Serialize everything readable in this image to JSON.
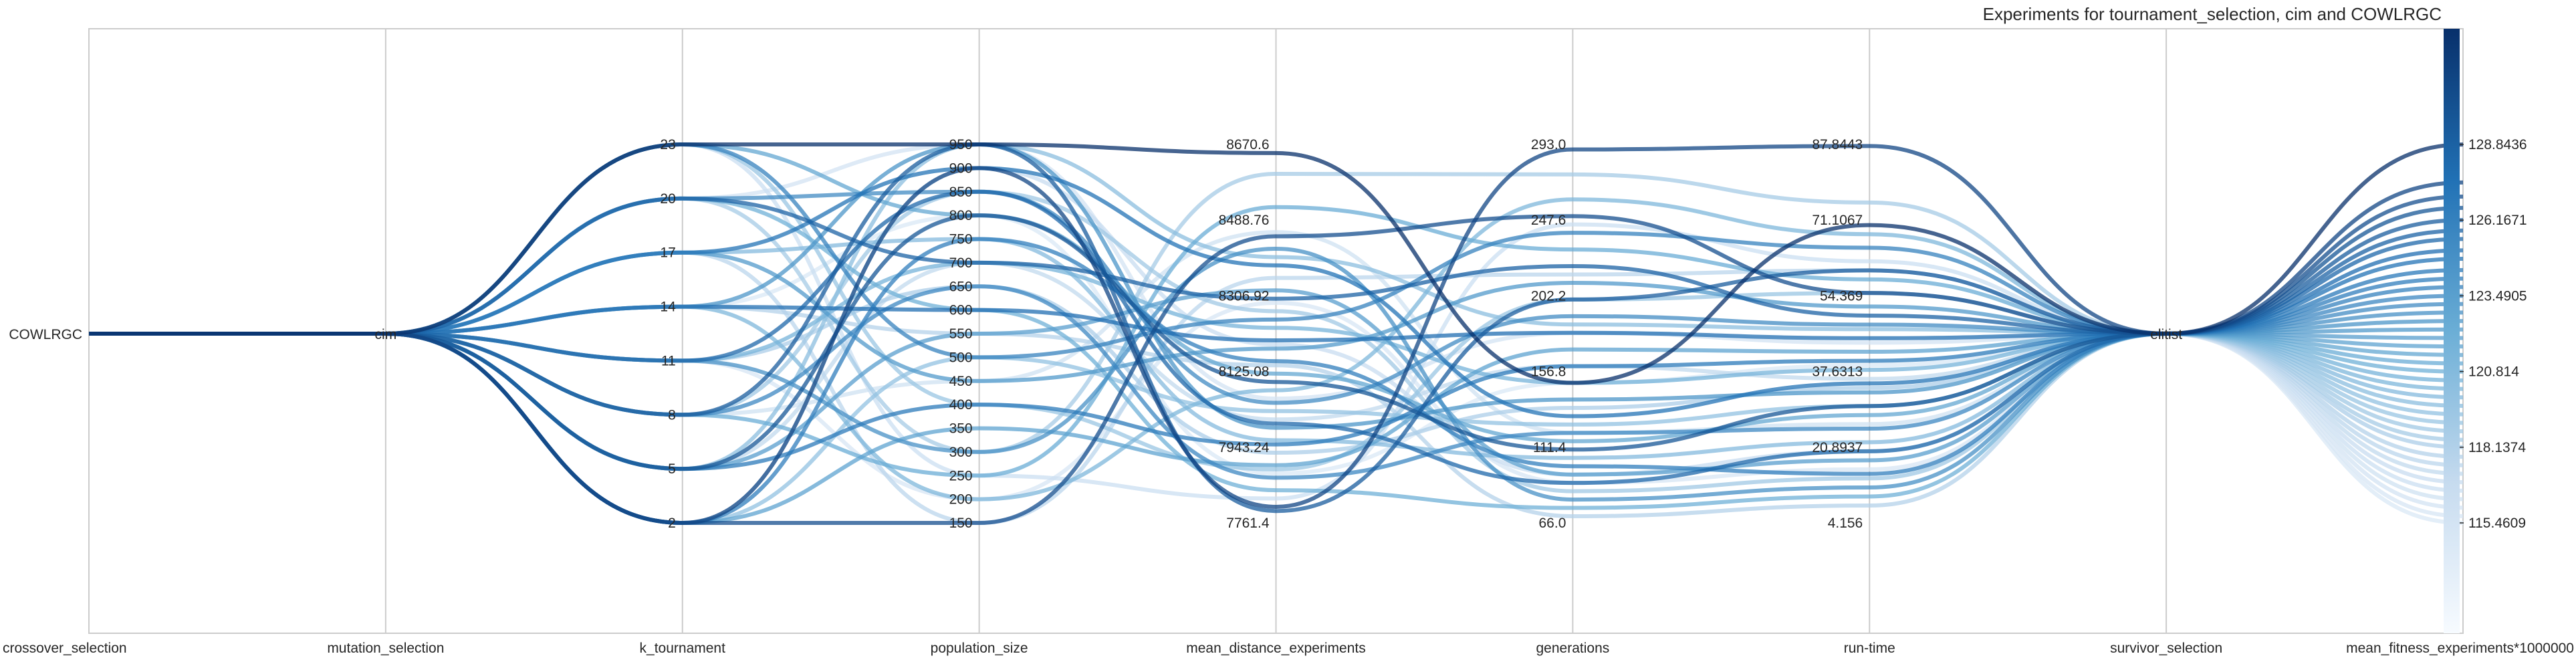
{
  "chart_data": {
    "type": "parallel_coordinates",
    "title": "Experiments for tournament_selection, cim and COWLRGC",
    "axes": [
      {
        "name": "crossover_selection",
        "kind": "categorical",
        "ticks": [
          "COWLRGC"
        ]
      },
      {
        "name": "mutation_selection",
        "kind": "categorical",
        "ticks": [
          "cim"
        ]
      },
      {
        "name": "k_tournament",
        "kind": "numeric",
        "range": [
          2,
          23
        ],
        "ticks": [
          "2",
          "5",
          "8",
          "11",
          "14",
          "17",
          "20",
          "23"
        ]
      },
      {
        "name": "population_size",
        "kind": "numeric",
        "range": [
          150,
          950
        ],
        "ticks": [
          "150",
          "200",
          "250",
          "300",
          "350",
          "400",
          "450",
          "500",
          "550",
          "600",
          "650",
          "700",
          "750",
          "800",
          "850",
          "900",
          "950"
        ]
      },
      {
        "name": "mean_distance_experiments",
        "kind": "numeric",
        "range": [
          7761.4,
          8670.6
        ],
        "ticks": [
          "7761.4",
          "7943.24",
          "8125.08",
          "8306.92",
          "8488.76",
          "8670.6"
        ]
      },
      {
        "name": "generations",
        "kind": "numeric",
        "range": [
          66.0,
          293.0
        ],
        "ticks": [
          "66.0",
          "111.4",
          "156.8",
          "202.2",
          "247.6",
          "293.0"
        ]
      },
      {
        "name": "run-time",
        "kind": "numeric",
        "range": [
          4.156,
          87.8443
        ],
        "ticks": [
          "4.156",
          "20.8937",
          "37.6313",
          "54.369",
          "71.1067",
          "87.8443"
        ]
      },
      {
        "name": "survivor_selection",
        "kind": "categorical",
        "ticks": [
          "elitist"
        ]
      },
      {
        "name": "mean_fitness_experiments*1000000",
        "kind": "numeric",
        "range": [
          115.4609,
          128.8436
        ],
        "ticks": [
          "115.4609",
          "118.1374",
          "120.814",
          "123.4905",
          "126.1671",
          "128.8436"
        ]
      }
    ],
    "colorbar": {
      "label": "mean_fitness_experiments*1000000",
      "ticks": [
        "115.4609",
        "118.1374",
        "120.814",
        "123.4905",
        "126.1671",
        "128.8436"
      ],
      "colormap": "Blues"
    },
    "series": [
      {
        "values": [
          "COWLRGC",
          "cim",
          23,
          950,
          8650,
          150,
          70,
          "elitist",
          128.84
        ]
      },
      {
        "values": [
          "COWLRGC",
          "cim",
          2,
          900,
          7800,
          290,
          87.5,
          "elitist",
          127.5
        ]
      },
      {
        "values": [
          "COWLRGC",
          "cim",
          2,
          150,
          8450,
          250,
          55,
          "elitist",
          127.0
        ]
      },
      {
        "values": [
          "COWLRGC",
          "cim",
          5,
          800,
          8100,
          110,
          30,
          "elitist",
          126.6
        ]
      },
      {
        "values": [
          "COWLRGC",
          "cim",
          8,
          950,
          7790,
          200,
          60,
          "elitist",
          126.17
        ]
      },
      {
        "values": [
          "COWLRGC",
          "cim",
          20,
          700,
          8300,
          220,
          50,
          "elitist",
          125.8
        ]
      },
      {
        "values": [
          "COWLRGC",
          "cim",
          11,
          850,
          8000,
          90,
          20,
          "elitist",
          125.5
        ]
      },
      {
        "values": [
          "COWLRGC",
          "cim",
          14,
          600,
          8200,
          180,
          45,
          "elitist",
          125.1
        ]
      },
      {
        "values": [
          "COWLRGC",
          "cim",
          17,
          900,
          8380,
          130,
          35,
          "elitist",
          124.8
        ]
      },
      {
        "values": [
          "COWLRGC",
          "cim",
          5,
          400,
          7950,
          160,
          40,
          "elitist",
          124.4
        ]
      },
      {
        "values": [
          "COWLRGC",
          "cim",
          2,
          750,
          8150,
          100,
          15,
          "elitist",
          124.1
        ]
      },
      {
        "values": [
          "COWLRGC",
          "cim",
          23,
          500,
          8250,
          240,
          65,
          "elitist",
          123.8
        ]
      },
      {
        "values": [
          "COWLRGC",
          "cim",
          8,
          650,
          7870,
          120,
          25,
          "elitist",
          123.49
        ]
      },
      {
        "values": [
          "COWLRGC",
          "cim",
          20,
          850,
          8050,
          190,
          48,
          "elitist",
          123.2
        ]
      },
      {
        "values": [
          "COWLRGC",
          "cim",
          11,
          300,
          8420,
          80,
          12,
          "elitist",
          122.9
        ]
      },
      {
        "values": [
          "COWLRGC",
          "cim",
          14,
          950,
          7990,
          140,
          33,
          "elitist",
          122.6
        ]
      },
      {
        "values": [
          "COWLRGC",
          "cim",
          17,
          450,
          8180,
          210,
          52,
          "elitist",
          122.3
        ]
      },
      {
        "values": [
          "COWLRGC",
          "cim",
          5,
          550,
          8320,
          95,
          18,
          "elitist",
          122.0
        ]
      },
      {
        "values": [
          "COWLRGC",
          "cim",
          2,
          350,
          7900,
          170,
          42,
          "elitist",
          121.7
        ]
      },
      {
        "values": [
          "COWLRGC",
          "cim",
          23,
          800,
          8120,
          115,
          28,
          "elitist",
          121.4
        ]
      },
      {
        "values": [
          "COWLRGC",
          "cim",
          8,
          250,
          8520,
          230,
          58,
          "elitist",
          121.1
        ]
      },
      {
        "values": [
          "COWLRGC",
          "cim",
          20,
          600,
          7840,
          75,
          10,
          "elitist",
          120.81
        ]
      },
      {
        "values": [
          "COWLRGC",
          "cim",
          11,
          700,
          8230,
          150,
          38,
          "elitist",
          120.5
        ]
      },
      {
        "values": [
          "COWLRGC",
          "cim",
          14,
          200,
          8080,
          260,
          68,
          "elitist",
          120.2
        ]
      },
      {
        "values": [
          "COWLRGC",
          "cim",
          17,
          750,
          7960,
          105,
          22,
          "elitist",
          119.9
        ]
      },
      {
        "values": [
          "COWLRGC",
          "cim",
          5,
          950,
          8400,
          185,
          47,
          "elitist",
          119.6
        ]
      },
      {
        "values": [
          "COWLRGC",
          "cim",
          2,
          500,
          8030,
          125,
          30,
          "elitist",
          119.3
        ]
      },
      {
        "values": [
          "COWLRGC",
          "cim",
          23,
          400,
          7890,
          200,
          55,
          "elitist",
          119.0
        ]
      },
      {
        "values": [
          "COWLRGC",
          "cim",
          8,
          850,
          8270,
          85,
          14,
          "elitist",
          118.7
        ]
      },
      {
        "values": [
          "COWLRGC",
          "cim",
          20,
          300,
          8600,
          275,
          75,
          "elitist",
          118.4
        ]
      },
      {
        "values": [
          "COWLRGC",
          "cim",
          11,
          650,
          7930,
          135,
          34,
          "elitist",
          118.14
        ]
      },
      {
        "values": [
          "COWLRGC",
          "cim",
          14,
          550,
          8140,
          70,
          8,
          "elitist",
          117.8
        ]
      },
      {
        "values": [
          "COWLRGC",
          "cim",
          17,
          150,
          8350,
          215,
          60,
          "elitist",
          117.5
        ]
      },
      {
        "values": [
          "COWLRGC",
          "cim",
          5,
          700,
          8010,
          160,
          36,
          "elitist",
          117.2
        ]
      },
      {
        "values": [
          "COWLRGC",
          "cim",
          2,
          900,
          8190,
          95,
          20,
          "elitist",
          116.9
        ]
      },
      {
        "values": [
          "COWLRGC",
          "cim",
          23,
          250,
          7820,
          245,
          62,
          "elitist",
          116.6
        ]
      },
      {
        "values": [
          "COWLRGC",
          "cim",
          8,
          450,
          8460,
          120,
          26,
          "elitist",
          116.3
        ]
      },
      {
        "values": [
          "COWLRGC",
          "cim",
          20,
          950,
          8060,
          180,
          44,
          "elitist",
          116.0
        ]
      },
      {
        "values": [
          "COWLRGC",
          "cim",
          11,
          200,
          8290,
          90,
          16,
          "elitist",
          115.7
        ]
      },
      {
        "values": [
          "COWLRGC",
          "cim",
          14,
          800,
          7880,
          150,
          39,
          "elitist",
          115.46
        ]
      }
    ]
  }
}
